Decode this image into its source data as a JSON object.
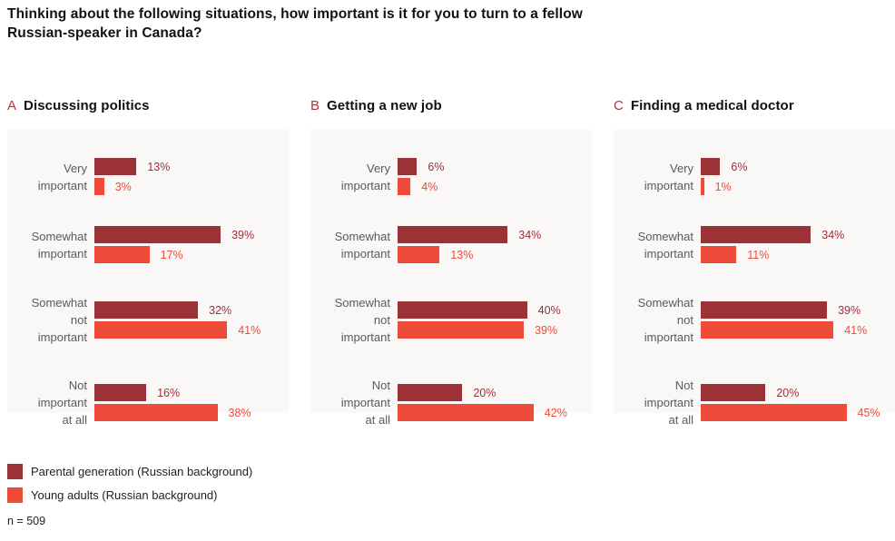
{
  "question": {
    "text": "Thinking about the following situations, how important is it for you to turn to a fellow Russian-speaker in Canada?",
    "lines": [
      "Thinking about the following situations, how important is it for you to turn to a fellow",
      "Russian-speaker in Canada?"
    ]
  },
  "colors": {
    "parental": "#9d3138",
    "young": "#ee4b3a",
    "panel_letter": "#b5323c",
    "panel_background": "#faf7f7",
    "category_label": "#5a5a5a",
    "text_dark": "#1f1f1f"
  },
  "legend": {
    "items": [
      {
        "label": "Parental generation (Russian background)",
        "series": "parental"
      },
      {
        "label": "Young adults (Russian background)",
        "series": "young"
      }
    ]
  },
  "sample_note": "n = 509",
  "chart_data": [
    {
      "type": "bar",
      "orientation": "horizontal",
      "panel_letter": "A",
      "title": "Discussing politics",
      "categories": [
        "Very important",
        "Somewhat important",
        "Somewhat not important",
        "Not important at all"
      ],
      "category_lines": [
        [
          "Very",
          "important"
        ],
        [
          "Somewhat",
          "important"
        ],
        [
          "Somewhat",
          "not",
          "important"
        ],
        [
          "Not",
          "important",
          "at all"
        ]
      ],
      "series": [
        {
          "name": "Parental generation (Russian background)",
          "color_key": "parental",
          "values": [
            13,
            39,
            32,
            16
          ]
        },
        {
          "name": "Young adults (Russian background)",
          "color_key": "young",
          "values": [
            3,
            17,
            41,
            38
          ]
        }
      ],
      "value_suffix": "%",
      "xlim": [
        0,
        60
      ],
      "grid": false,
      "legend_position": "bottom-left"
    },
    {
      "type": "bar",
      "orientation": "horizontal",
      "panel_letter": "B",
      "title": "Getting a new job",
      "categories": [
        "Very important",
        "Somewhat important",
        "Somewhat not important",
        "Not important at all"
      ],
      "category_lines": [
        [
          "Very",
          "important"
        ],
        [
          "Somewhat",
          "important"
        ],
        [
          "Somewhat",
          "not",
          "important"
        ],
        [
          "Not",
          "important",
          "at all"
        ]
      ],
      "series": [
        {
          "name": "Parental generation (Russian background)",
          "color_key": "parental",
          "values": [
            6,
            34,
            40,
            20
          ]
        },
        {
          "name": "Young adults (Russian background)",
          "color_key": "young",
          "values": [
            4,
            13,
            39,
            42
          ]
        }
      ],
      "value_suffix": "%",
      "xlim": [
        0,
        60
      ],
      "grid": false,
      "legend_position": "bottom-left"
    },
    {
      "type": "bar",
      "orientation": "horizontal",
      "panel_letter": "C",
      "title": "Finding a medical doctor",
      "categories": [
        "Very important",
        "Somewhat important",
        "Somewhat not important",
        "Not important at all"
      ],
      "category_lines": [
        [
          "Very",
          "important"
        ],
        [
          "Somewhat",
          "important"
        ],
        [
          "Somewhat",
          "not",
          "important"
        ],
        [
          "Not",
          "important",
          "at all"
        ]
      ],
      "series": [
        {
          "name": "Parental generation (Russian background)",
          "color_key": "parental",
          "values": [
            6,
            34,
            39,
            20
          ]
        },
        {
          "name": "Young adults (Russian background)",
          "color_key": "young",
          "values": [
            1,
            11,
            41,
            45
          ]
        }
      ],
      "value_suffix": "%",
      "xlim": [
        0,
        60
      ],
      "grid": false,
      "legend_position": "bottom-left"
    }
  ]
}
